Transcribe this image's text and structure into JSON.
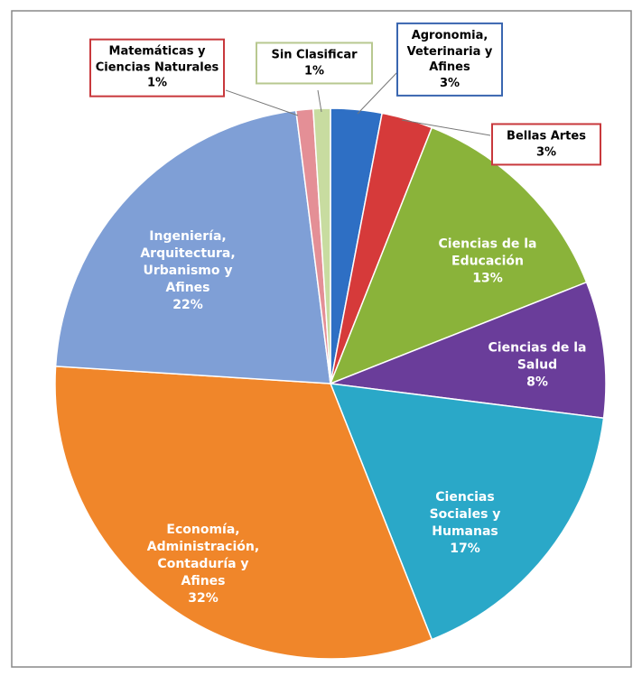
{
  "chart_data": {
    "type": "pie",
    "categories": [
      "Agronomia, Veterinaria y Afines",
      "Bellas Artes",
      "Ciencias de la Educación",
      "Ciencias de la Salud",
      "Ciencias Sociales y Humanas",
      "Economía, Administración, Contaduría y Afines",
      "Ingeniería, Arquitectura, Urbanismo y Afines",
      "Matemáticas y Ciencias Naturales",
      "Sin Clasificar"
    ],
    "values": [
      3,
      3,
      13,
      8,
      17,
      32,
      22,
      1,
      1
    ],
    "value_labels": [
      "3%",
      "3%",
      "13%",
      "8%",
      "17%",
      "32%",
      "22%",
      "1%",
      "1%"
    ],
    "colors": [
      "#2e6fc4",
      "#d63a3a",
      "#8ab33a",
      "#6a3d9a",
      "#2aa8c8",
      "#f0862a",
      "#7f9fd6",
      "#e48f96",
      "#c8dca0"
    ]
  }
}
